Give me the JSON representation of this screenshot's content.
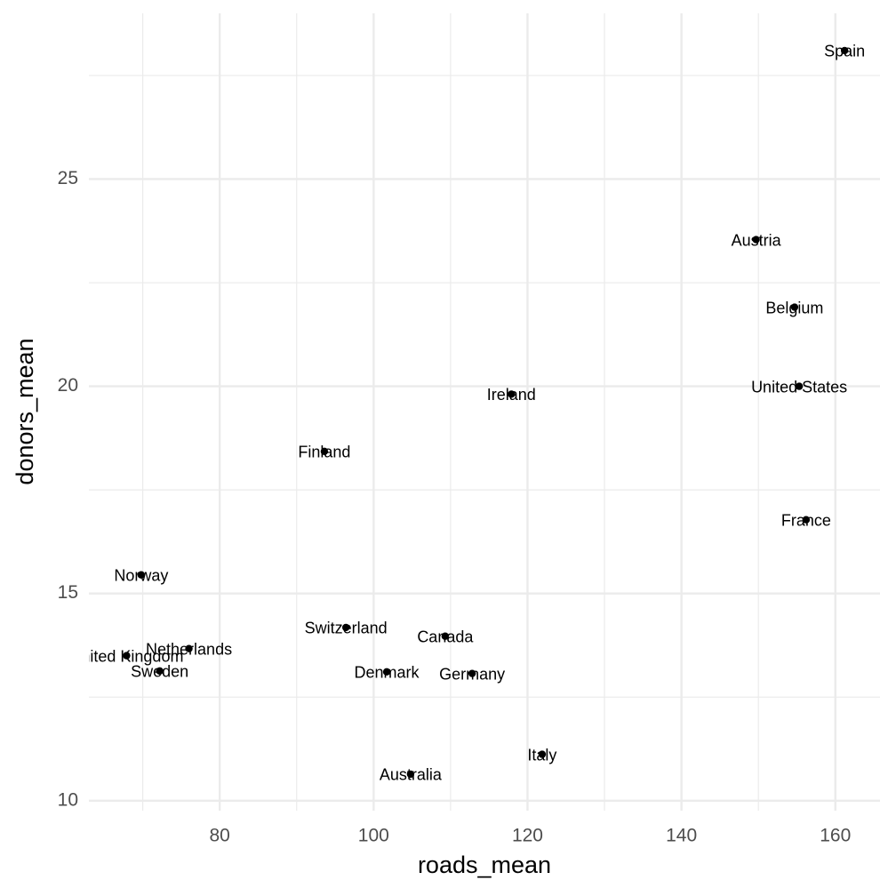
{
  "chart_data": {
    "type": "scatter",
    "x_label": "roads_mean",
    "y_label": "donors_mean",
    "color": "#000000",
    "grid": true,
    "xlim": [
      63.0,
      165.8
    ],
    "ylim": [
      9.76,
      29.0
    ],
    "xticks": [
      80,
      100,
      120,
      140,
      160
    ],
    "yticks": [
      10,
      15,
      20,
      25
    ],
    "x_minor_ticks": [
      70,
      90,
      110,
      130,
      150
    ],
    "y_minor_ticks": [
      12.5,
      17.5,
      22.5,
      27.5
    ],
    "labels": [
      "Spain",
      "Austria",
      "Belgium",
      "United States",
      "Ireland",
      "Finland",
      "France",
      "Norway",
      "Switzerland",
      "Canada",
      "Netherlands",
      "United Kingdom",
      "Sweden",
      "Denmark",
      "Germany",
      "Italy",
      "Australia"
    ],
    "x": [
      161.2,
      149.7,
      154.7,
      155.3,
      117.9,
      93.6,
      156.2,
      69.8,
      96.4,
      109.3,
      76.0,
      67.9,
      72.2,
      101.7,
      112.8,
      121.9,
      104.8
    ],
    "y": [
      28.1,
      23.54,
      21.91,
      20.0,
      19.81,
      18.43,
      16.78,
      15.45,
      14.18,
      13.97,
      13.67,
      13.5,
      13.13,
      13.11,
      13.07,
      11.12,
      10.64
    ]
  }
}
